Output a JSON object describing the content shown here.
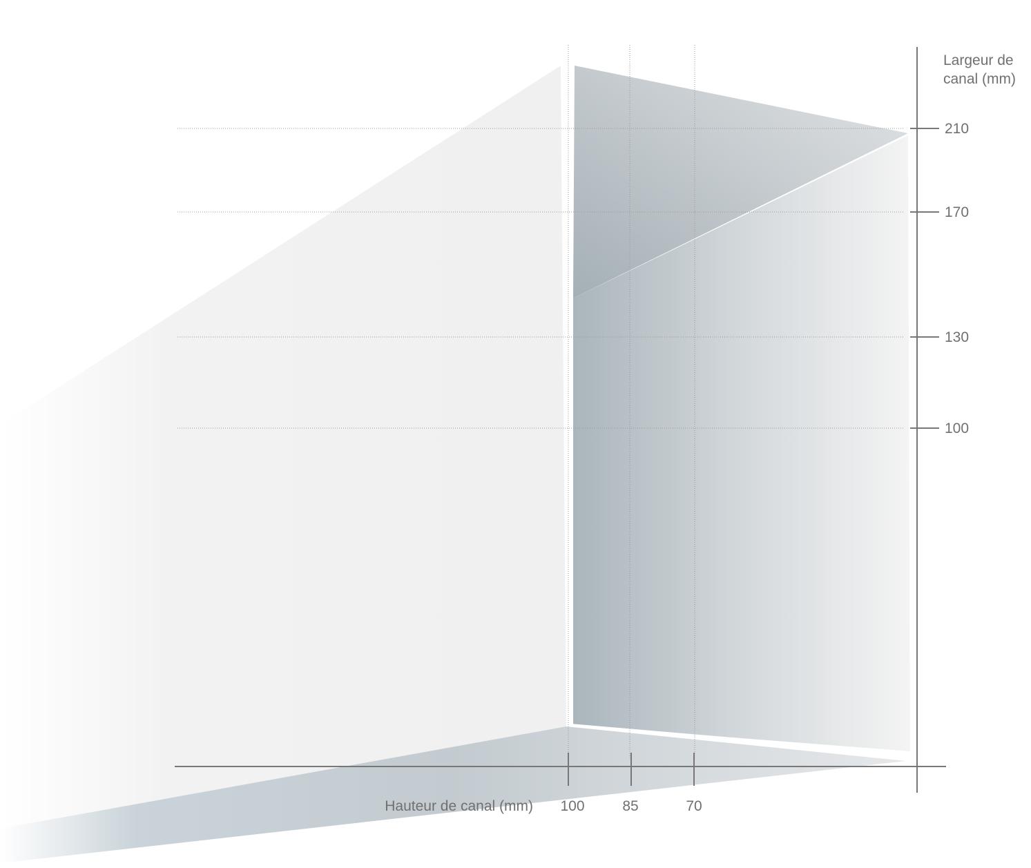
{
  "y_axis": {
    "title_lines": [
      "Largeur de",
      "canal  (mm)"
    ],
    "ticks": [
      210,
      170,
      130,
      100
    ]
  },
  "x_axis": {
    "title": "Hauteur de canal (mm)",
    "ticks": [
      100,
      85,
      70
    ]
  }
}
